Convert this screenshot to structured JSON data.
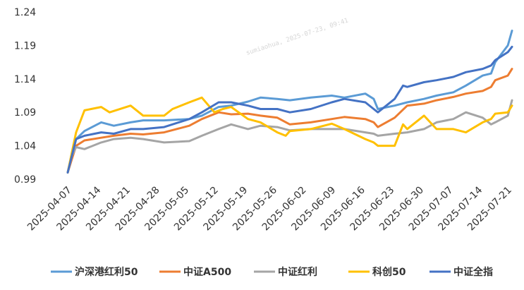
{
  "chart_data": {
    "type": "line",
    "title": "",
    "xlabel": "",
    "ylabel": "",
    "ylim": [
      0.99,
      1.24
    ],
    "yticks": [
      0.99,
      1.04,
      1.09,
      1.14,
      1.19,
      1.24
    ],
    "ytick_labels": [
      "0.99",
      "1.04",
      "1.09",
      "1.14",
      "1.19",
      "1.24"
    ],
    "xticks": [
      "2025-04-07",
      "2025-04-14",
      "2025-04-21",
      "2025-04-28",
      "2025-05-05",
      "2025-05-12",
      "2025-05-19",
      "2025-05-26",
      "2025-06-02",
      "2025-06-09",
      "2025-06-16",
      "2025-06-23",
      "2025-06-30",
      "2025-07-07",
      "2025-07-14",
      "2025-07-21"
    ],
    "x_end": "2025-07-22",
    "grid": false,
    "legend_position": "bottom",
    "watermark": "sumiaohua, 2025-07-23, 09:41",
    "series": [
      {
        "name": "沪深港红利50",
        "color": "#5b9bd5",
        "points": [
          [
            "2025-04-07",
            1.0
          ],
          [
            "2025-04-08",
            1.025
          ],
          [
            "2025-04-09",
            1.05
          ],
          [
            "2025-04-11",
            1.062
          ],
          [
            "2025-04-15",
            1.075
          ],
          [
            "2025-04-18",
            1.07
          ],
          [
            "2025-04-22",
            1.075
          ],
          [
            "2025-04-25",
            1.078
          ],
          [
            "2025-04-30",
            1.078
          ],
          [
            "2025-05-06",
            1.08
          ],
          [
            "2025-05-09",
            1.085
          ],
          [
            "2025-05-13",
            1.098
          ],
          [
            "2025-05-16",
            1.1
          ],
          [
            "2025-05-20",
            1.106
          ],
          [
            "2025-05-23",
            1.112
          ],
          [
            "2025-05-27",
            1.11
          ],
          [
            "2025-05-30",
            1.108
          ],
          [
            "2025-06-04",
            1.112
          ],
          [
            "2025-06-09",
            1.115
          ],
          [
            "2025-06-12",
            1.112
          ],
          [
            "2025-06-17",
            1.118
          ],
          [
            "2025-06-19",
            1.11
          ],
          [
            "2025-06-20",
            1.095
          ],
          [
            "2025-06-24",
            1.1
          ],
          [
            "2025-06-27",
            1.105
          ],
          [
            "2025-07-01",
            1.11
          ],
          [
            "2025-07-04",
            1.115
          ],
          [
            "2025-07-08",
            1.12
          ],
          [
            "2025-07-11",
            1.13
          ],
          [
            "2025-07-15",
            1.145
          ],
          [
            "2025-07-17",
            1.148
          ],
          [
            "2025-07-18",
            1.165
          ],
          [
            "2025-07-21",
            1.19
          ],
          [
            "2025-07-22",
            1.212
          ]
        ]
      },
      {
        "name": "中证A500",
        "color": "#ed7d31",
        "points": [
          [
            "2025-04-07",
            1.0
          ],
          [
            "2025-04-08",
            1.02
          ],
          [
            "2025-04-09",
            1.04
          ],
          [
            "2025-04-11",
            1.048
          ],
          [
            "2025-04-15",
            1.052
          ],
          [
            "2025-04-18",
            1.055
          ],
          [
            "2025-04-22",
            1.058
          ],
          [
            "2025-04-25",
            1.057
          ],
          [
            "2025-04-30",
            1.06
          ],
          [
            "2025-05-06",
            1.07
          ],
          [
            "2025-05-09",
            1.08
          ],
          [
            "2025-05-13",
            1.09
          ],
          [
            "2025-05-16",
            1.087
          ],
          [
            "2025-05-20",
            1.088
          ],
          [
            "2025-05-23",
            1.085
          ],
          [
            "2025-05-27",
            1.082
          ],
          [
            "2025-05-30",
            1.072
          ],
          [
            "2025-06-04",
            1.075
          ],
          [
            "2025-06-09",
            1.08
          ],
          [
            "2025-06-12",
            1.083
          ],
          [
            "2025-06-17",
            1.08
          ],
          [
            "2025-06-19",
            1.075
          ],
          [
            "2025-06-20",
            1.068
          ],
          [
            "2025-06-24",
            1.082
          ],
          [
            "2025-06-27",
            1.1
          ],
          [
            "2025-07-01",
            1.103
          ],
          [
            "2025-07-04",
            1.108
          ],
          [
            "2025-07-08",
            1.113
          ],
          [
            "2025-07-11",
            1.118
          ],
          [
            "2025-07-15",
            1.122
          ],
          [
            "2025-07-17",
            1.128
          ],
          [
            "2025-07-18",
            1.138
          ],
          [
            "2025-07-21",
            1.145
          ],
          [
            "2025-07-22",
            1.155
          ]
        ]
      },
      {
        "name": "中证红利",
        "color": "#a5a5a5",
        "points": [
          [
            "2025-04-07",
            1.0
          ],
          [
            "2025-04-08",
            1.025
          ],
          [
            "2025-04-09",
            1.038
          ],
          [
            "2025-04-11",
            1.035
          ],
          [
            "2025-04-15",
            1.045
          ],
          [
            "2025-04-18",
            1.05
          ],
          [
            "2025-04-22",
            1.052
          ],
          [
            "2025-04-25",
            1.05
          ],
          [
            "2025-04-30",
            1.045
          ],
          [
            "2025-05-06",
            1.047
          ],
          [
            "2025-05-09",
            1.055
          ],
          [
            "2025-05-13",
            1.065
          ],
          [
            "2025-05-16",
            1.072
          ],
          [
            "2025-05-20",
            1.065
          ],
          [
            "2025-05-23",
            1.07
          ],
          [
            "2025-05-27",
            1.068
          ],
          [
            "2025-05-30",
            1.063
          ],
          [
            "2025-06-04",
            1.065
          ],
          [
            "2025-06-09",
            1.065
          ],
          [
            "2025-06-12",
            1.065
          ],
          [
            "2025-06-17",
            1.06
          ],
          [
            "2025-06-19",
            1.058
          ],
          [
            "2025-06-20",
            1.055
          ],
          [
            "2025-06-24",
            1.058
          ],
          [
            "2025-06-27",
            1.06
          ],
          [
            "2025-07-01",
            1.065
          ],
          [
            "2025-07-04",
            1.075
          ],
          [
            "2025-07-08",
            1.08
          ],
          [
            "2025-07-11",
            1.09
          ],
          [
            "2025-07-15",
            1.082
          ],
          [
            "2025-07-17",
            1.072
          ],
          [
            "2025-07-18",
            1.075
          ],
          [
            "2025-07-21",
            1.085
          ],
          [
            "2025-07-22",
            1.108
          ]
        ]
      },
      {
        "name": "科创50",
        "color": "#ffc000",
        "points": [
          [
            "2025-04-07",
            1.0
          ],
          [
            "2025-04-08",
            1.03
          ],
          [
            "2025-04-09",
            1.06
          ],
          [
            "2025-04-11",
            1.093
          ],
          [
            "2025-04-15",
            1.098
          ],
          [
            "2025-04-17",
            1.09
          ],
          [
            "2025-04-22",
            1.1
          ],
          [
            "2025-04-25",
            1.085
          ],
          [
            "2025-04-30",
            1.085
          ],
          [
            "2025-05-02",
            1.095
          ],
          [
            "2025-05-06",
            1.105
          ],
          [
            "2025-05-09",
            1.112
          ],
          [
            "2025-05-12",
            1.09
          ],
          [
            "2025-05-14",
            1.095
          ],
          [
            "2025-05-16",
            1.098
          ],
          [
            "2025-05-20",
            1.08
          ],
          [
            "2025-05-23",
            1.075
          ],
          [
            "2025-05-27",
            1.06
          ],
          [
            "2025-05-29",
            1.055
          ],
          [
            "2025-05-30",
            1.062
          ],
          [
            "2025-06-04",
            1.065
          ],
          [
            "2025-06-09",
            1.073
          ],
          [
            "2025-06-12",
            1.065
          ],
          [
            "2025-06-17",
            1.05
          ],
          [
            "2025-06-19",
            1.045
          ],
          [
            "2025-06-20",
            1.04
          ],
          [
            "2025-06-24",
            1.04
          ],
          [
            "2025-06-26",
            1.072
          ],
          [
            "2025-06-27",
            1.065
          ],
          [
            "2025-07-01",
            1.085
          ],
          [
            "2025-07-04",
            1.065
          ],
          [
            "2025-07-08",
            1.065
          ],
          [
            "2025-07-11",
            1.06
          ],
          [
            "2025-07-15",
            1.075
          ],
          [
            "2025-07-17",
            1.08
          ],
          [
            "2025-07-18",
            1.088
          ],
          [
            "2025-07-21",
            1.09
          ],
          [
            "2025-07-22",
            1.1
          ]
        ]
      },
      {
        "name": "中证全指",
        "color": "#4472c4",
        "points": [
          [
            "2025-04-07",
            1.0
          ],
          [
            "2025-04-08",
            1.025
          ],
          [
            "2025-04-09",
            1.05
          ],
          [
            "2025-04-11",
            1.055
          ],
          [
            "2025-04-15",
            1.06
          ],
          [
            "2025-04-18",
            1.058
          ],
          [
            "2025-04-22",
            1.065
          ],
          [
            "2025-04-25",
            1.065
          ],
          [
            "2025-04-30",
            1.068
          ],
          [
            "2025-05-06",
            1.08
          ],
          [
            "2025-05-09",
            1.09
          ],
          [
            "2025-05-13",
            1.105
          ],
          [
            "2025-05-16",
            1.105
          ],
          [
            "2025-05-20",
            1.1
          ],
          [
            "2025-05-23",
            1.095
          ],
          [
            "2025-05-27",
            1.095
          ],
          [
            "2025-05-30",
            1.09
          ],
          [
            "2025-06-04",
            1.095
          ],
          [
            "2025-06-09",
            1.105
          ],
          [
            "2025-06-12",
            1.11
          ],
          [
            "2025-06-17",
            1.105
          ],
          [
            "2025-06-19",
            1.095
          ],
          [
            "2025-06-20",
            1.09
          ],
          [
            "2025-06-24",
            1.11
          ],
          [
            "2025-06-26",
            1.13
          ],
          [
            "2025-06-27",
            1.128
          ],
          [
            "2025-07-01",
            1.135
          ],
          [
            "2025-07-04",
            1.138
          ],
          [
            "2025-07-08",
            1.143
          ],
          [
            "2025-07-11",
            1.15
          ],
          [
            "2025-07-15",
            1.155
          ],
          [
            "2025-07-17",
            1.16
          ],
          [
            "2025-07-18",
            1.168
          ],
          [
            "2025-07-21",
            1.18
          ],
          [
            "2025-07-22",
            1.188
          ]
        ]
      }
    ]
  }
}
